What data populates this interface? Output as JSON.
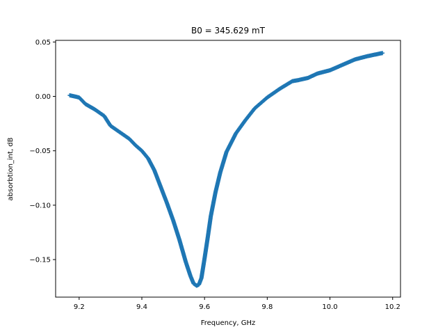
{
  "chart_data": {
    "type": "scatter",
    "title": "B0 = 345.629 mT",
    "xlabel": "Frequency, GHz",
    "ylabel": "absorbtion_int, dB",
    "xlim": [
      9.125,
      10.225
    ],
    "ylim": [
      -0.1845,
      0.0515
    ],
    "xticks": [
      9.2,
      9.4,
      9.6,
      9.8,
      10.0,
      10.2
    ],
    "xtick_labels": [
      "9.2",
      "9.4",
      "9.6",
      "9.8",
      "10.0",
      "10.2"
    ],
    "yticks": [
      0.05,
      0.0,
      -0.05,
      -0.1,
      -0.15
    ],
    "ytick_labels": [
      "0.05",
      "0.00",
      "−0.05",
      "−0.10",
      "−0.15"
    ],
    "grid": false,
    "legend": "none",
    "color": "#1f77b4",
    "marker": "+",
    "series": [
      {
        "x": [
          9.17,
          9.2,
          9.22,
          9.25,
          9.28,
          9.3,
          9.33,
          9.36,
          9.38,
          9.4,
          9.42,
          9.44,
          9.46,
          9.48,
          9.5,
          9.52,
          9.54,
          9.555,
          9.565,
          9.575,
          9.582,
          9.59,
          9.6,
          9.61,
          9.62,
          9.635,
          9.65,
          9.67,
          9.7,
          9.73,
          9.76,
          9.8,
          9.84,
          9.88,
          9.9,
          9.93,
          9.96,
          10.0,
          10.04,
          10.08,
          10.12,
          10.17
        ],
        "y": [
          0.001,
          -0.001,
          -0.007,
          -0.012,
          -0.018,
          -0.027,
          -0.033,
          -0.039,
          -0.045,
          -0.05,
          -0.057,
          -0.068,
          -0.083,
          -0.098,
          -0.114,
          -0.132,
          -0.152,
          -0.165,
          -0.172,
          -0.174,
          -0.173,
          -0.167,
          -0.149,
          -0.13,
          -0.11,
          -0.088,
          -0.07,
          -0.051,
          -0.034,
          -0.022,
          -0.011,
          -0.001,
          0.007,
          0.014,
          0.015,
          0.017,
          0.021,
          0.024,
          0.029,
          0.034,
          0.037,
          0.04
        ]
      }
    ]
  }
}
